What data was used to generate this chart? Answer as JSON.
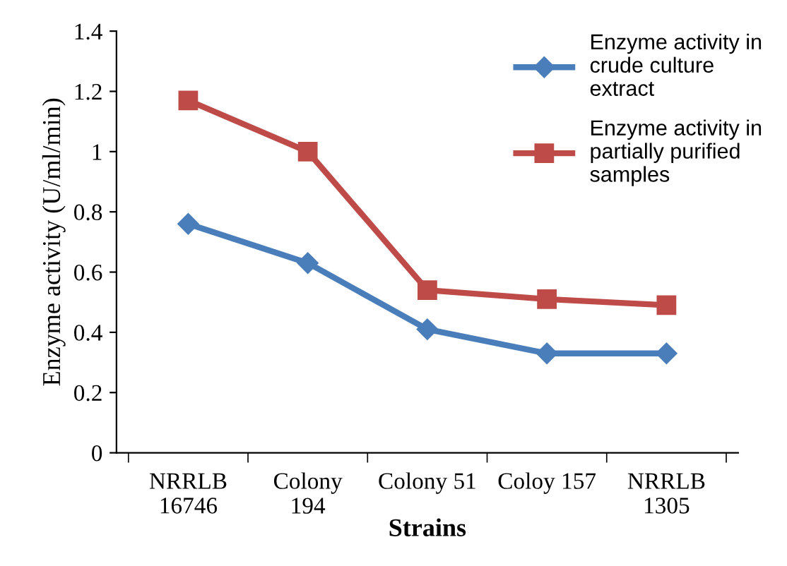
{
  "chart_data": {
    "type": "line",
    "xlabel": "Strains",
    "ylabel": "Enzyme activity (U/ml/min)",
    "categories": [
      "NRRLB\n16746",
      "Colony\n194",
      "Colony 51",
      "Coloy 157",
      "NRRLB\n1305"
    ],
    "series": [
      {
        "name": "Enzyme activity in\ncrude culture\nextract",
        "color": "#4a7ebb",
        "marker": "diamond",
        "values": [
          0.76,
          0.63,
          0.41,
          0.33,
          0.33
        ]
      },
      {
        "name": "Enzyme activity in\npartially purified\nsamples",
        "color": "#be4b48",
        "marker": "square",
        "values": [
          1.17,
          1.0,
          0.54,
          0.51,
          0.49
        ]
      }
    ],
    "ylim": [
      0,
      1.4
    ],
    "yticks": [
      {
        "value": 0,
        "label": "0"
      },
      0.2,
      0.4,
      0.6,
      0.8,
      {
        "value": 1,
        "label": "1"
      },
      1.2,
      1.4
    ],
    "grid": false,
    "legend": "top right",
    "line_style": "solid"
  }
}
